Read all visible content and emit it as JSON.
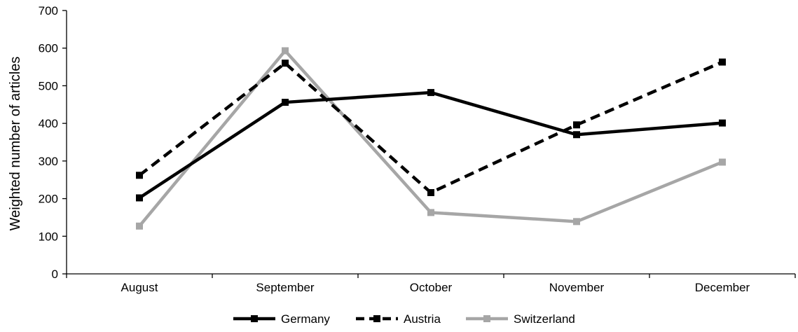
{
  "chart_data": {
    "type": "line",
    "categories": [
      "August",
      "September",
      "October",
      "November",
      "December"
    ],
    "series": [
      {
        "name": "Germany",
        "values": [
          202,
          456,
          482,
          370,
          401
        ],
        "color": "#000000",
        "dashed": false,
        "marker": "square"
      },
      {
        "name": "Austria",
        "values": [
          262,
          560,
          216,
          396,
          563
        ],
        "color": "#000000",
        "dashed": true,
        "marker": "square"
      },
      {
        "name": "Switzerland",
        "values": [
          127,
          593,
          163,
          139,
          297
        ],
        "color": "#a6a6a6",
        "dashed": false,
        "marker": "square"
      }
    ],
    "ylabel": "Weighted number of articles",
    "xlabel": "",
    "ylim": [
      0,
      700
    ],
    "yticks": [
      0,
      100,
      200,
      300,
      400,
      500,
      600,
      700
    ],
    "grid": false,
    "legend_position": "bottom"
  }
}
